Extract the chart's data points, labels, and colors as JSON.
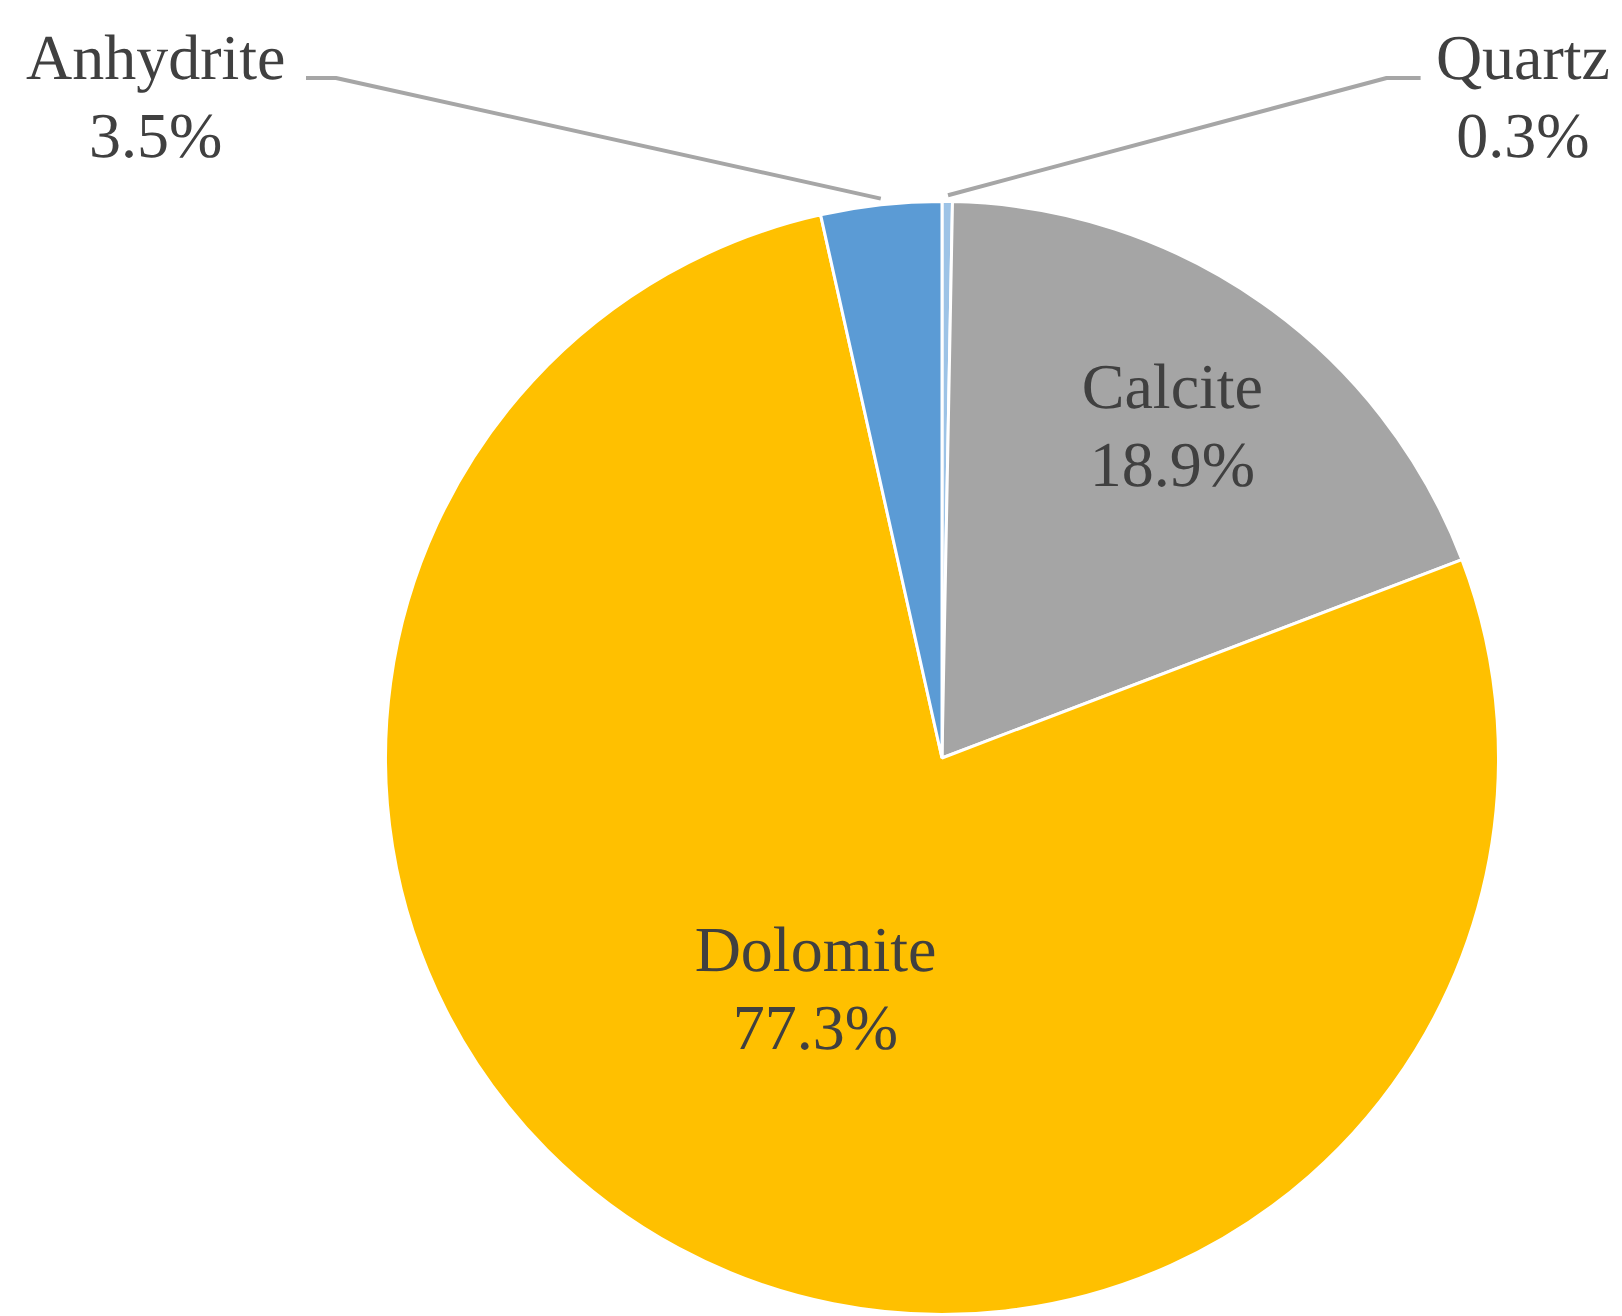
{
  "chart_data": {
    "type": "pie",
    "categories": [
      "Quartz",
      "Calcite",
      "Dolomite",
      "Anhydrite"
    ],
    "values": [
      0.3,
      18.9,
      77.3,
      3.5
    ],
    "colors": [
      "#9dc3e6",
      "#a5a5a5",
      "#ffc000",
      "#5b9bd5"
    ],
    "value_labels": [
      "0.3%",
      "18.9%",
      "77.3%",
      "3.5%"
    ]
  }
}
